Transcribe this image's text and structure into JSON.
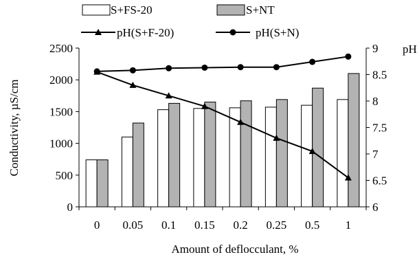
{
  "chart_data": {
    "type": "bar",
    "title": "",
    "xlabel": "Amount of deflocculant, %",
    "ylabel": "Conductivity, µS/cm",
    "y2label": "pH",
    "categories": [
      "0",
      "0.05",
      "0.1",
      "0.15",
      "0.2",
      "0.25",
      "0.5",
      "1"
    ],
    "ylim": [
      0,
      2500
    ],
    "y_ticks": [
      "0",
      "500",
      "1000",
      "1500",
      "2000",
      "2500"
    ],
    "y2lim": [
      6,
      9
    ],
    "y2_ticks": [
      "6",
      "6.5",
      "7",
      "7.5",
      "8",
      "8.5",
      "9"
    ],
    "grid": false,
    "legend_position": "top",
    "bar_series": [
      {
        "name": "S+FS-20",
        "color": "#ffffff",
        "values": [
          740,
          1100,
          1530,
          1550,
          1560,
          1570,
          1600,
          1690
        ]
      },
      {
        "name": "S+NT",
        "color": "#b3b3b3",
        "values": [
          740,
          1320,
          1630,
          1650,
          1670,
          1690,
          1870,
          2100
        ]
      }
    ],
    "line_series": [
      {
        "name": "pH(S+F-20)",
        "marker": "triangle",
        "color": "#000000",
        "axis": "right",
        "values": [
          8.55,
          8.3,
          8.1,
          7.9,
          7.6,
          7.3,
          7.05,
          6.55
        ]
      },
      {
        "name": "pH(S+N)",
        "marker": "circle",
        "color": "#000000",
        "axis": "right",
        "values": [
          8.56,
          8.58,
          8.62,
          8.63,
          8.64,
          8.64,
          8.74,
          8.84
        ]
      }
    ]
  }
}
